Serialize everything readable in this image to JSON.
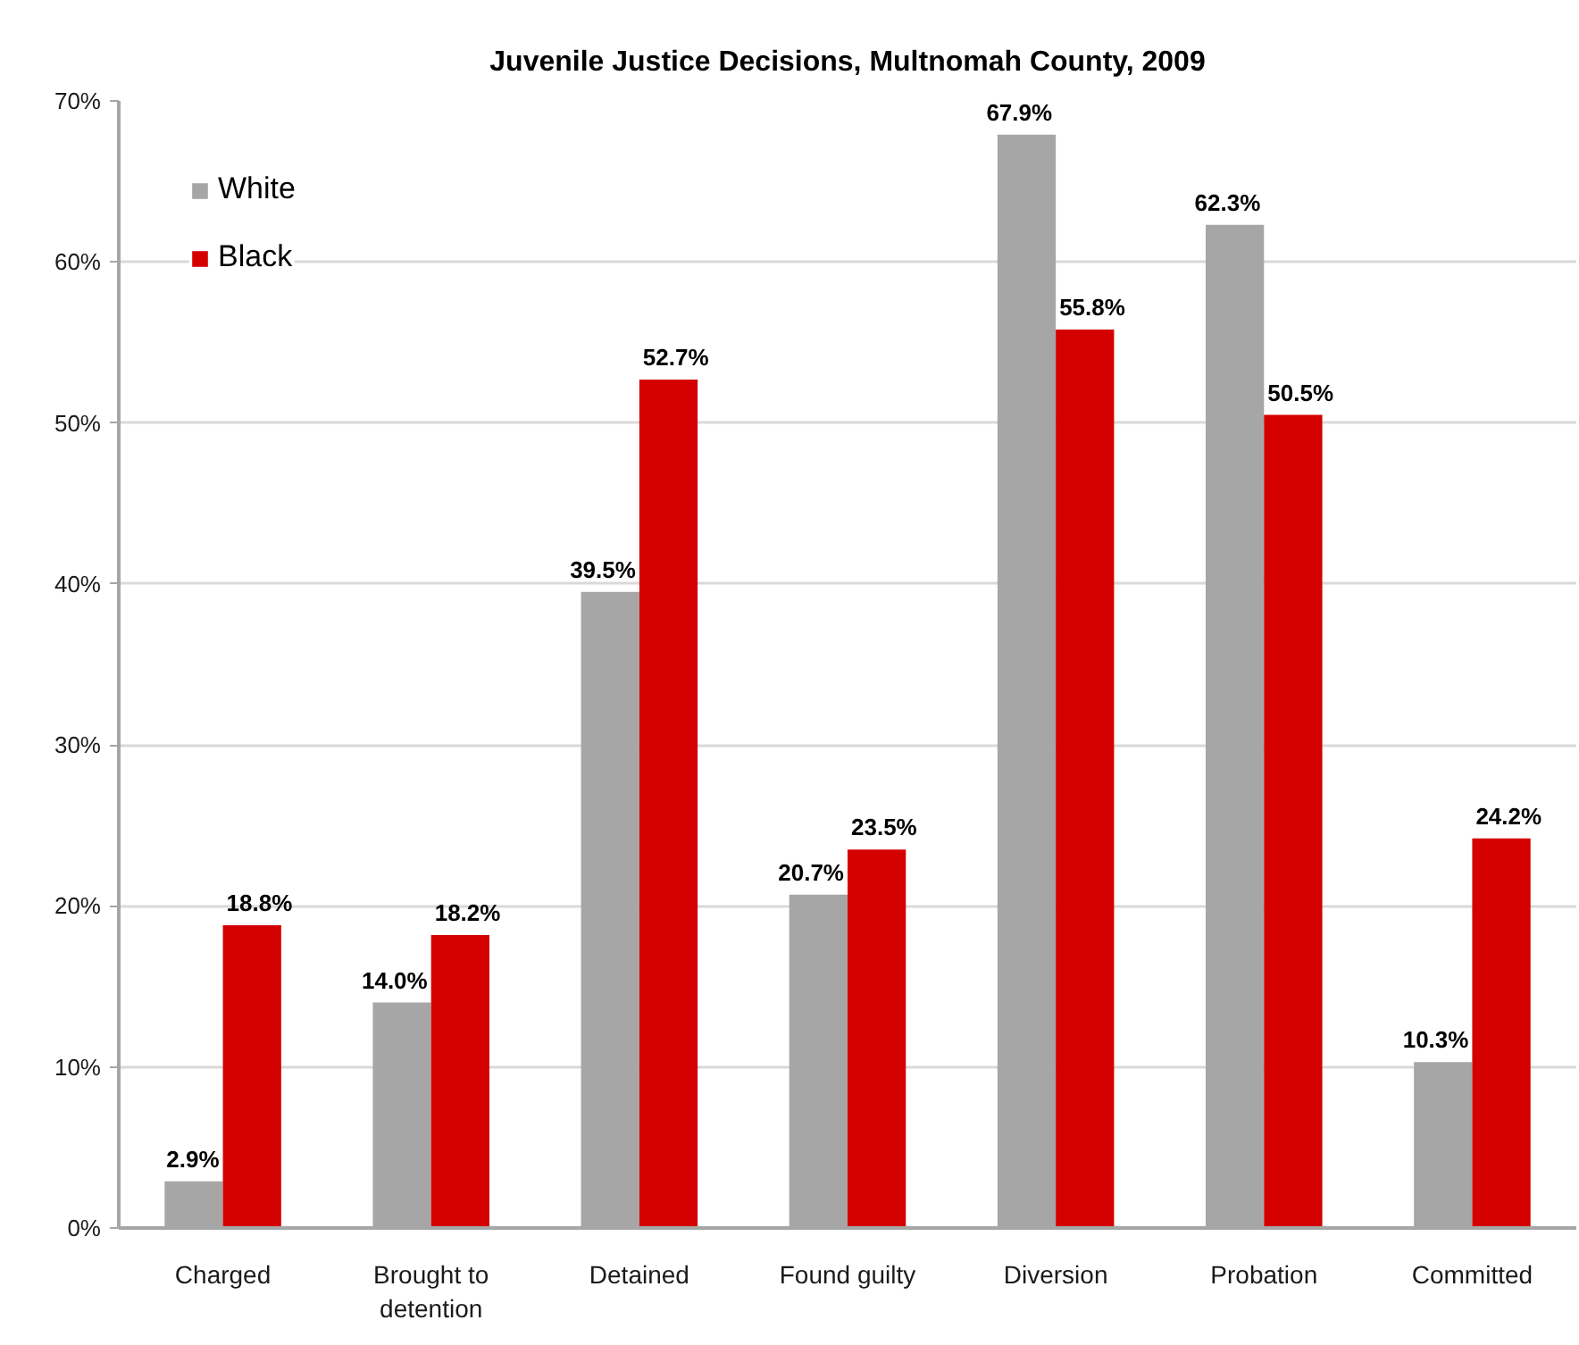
{
  "chart_data": {
    "type": "bar",
    "title": "Juvenile Justice Decisions, Multnomah County, 2009",
    "categories": [
      "Charged",
      "Brought to detention",
      "Detained",
      "Found guilty",
      "Diversion",
      "Probation",
      "Committed"
    ],
    "series": [
      {
        "name": "White",
        "color": "#a6a6a6",
        "values": [
          2.9,
          14.0,
          39.5,
          20.7,
          67.9,
          62.3,
          10.3
        ],
        "value_labels": [
          "2.9%",
          "14.0%",
          "39.5%",
          "20.7%",
          "67.9%",
          "62.3%",
          "10.3%"
        ]
      },
      {
        "name": "Black",
        "color": "#d40000",
        "values": [
          18.8,
          18.2,
          52.7,
          23.5,
          55.8,
          50.5,
          24.2
        ],
        "value_labels": [
          "18.8%",
          "18.2%",
          "52.7%",
          "23.5%",
          "55.8%",
          "50.5%",
          "24.2%"
        ]
      }
    ],
    "ylim": [
      0,
      70
    ],
    "yticks": [
      {
        "value": 0,
        "label": "0%"
      },
      {
        "value": 10,
        "label": "10%"
      },
      {
        "value": 20,
        "label": "20%"
      },
      {
        "value": 30,
        "label": "30%"
      },
      {
        "value": 40,
        "label": "40%"
      },
      {
        "value": 50,
        "label": "50%"
      },
      {
        "value": 60,
        "label": "60%"
      },
      {
        "value": 70,
        "label": "70%"
      }
    ],
    "grid": "y",
    "legend": "top left"
  }
}
